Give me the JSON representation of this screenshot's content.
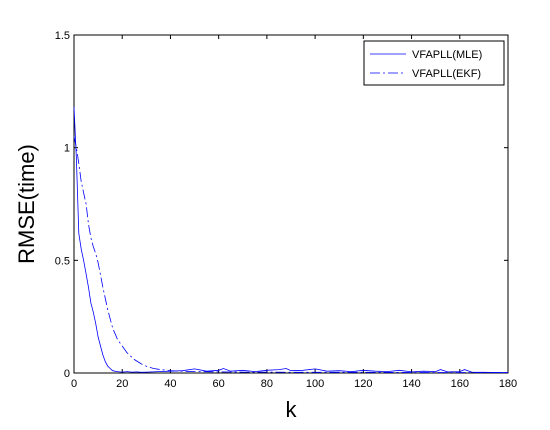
{
  "chart_data": {
    "type": "line",
    "title": "",
    "xlabel": "k",
    "ylabel": "RMSE(time)",
    "xlim": [
      0,
      180
    ],
    "ylim": [
      0,
      1.5
    ],
    "xticks": [
      0,
      20,
      40,
      60,
      80,
      100,
      120,
      140,
      160,
      180
    ],
    "yticks": [
      0,
      0.5,
      1,
      1.5
    ],
    "grid": false,
    "legend": "top-right",
    "series": [
      {
        "name": "VFAPLL(MLE)",
        "style": "solid",
        "color": "#0000ff",
        "x": [
          0,
          1,
          2,
          3,
          4,
          5,
          6,
          7,
          8,
          9,
          10,
          11,
          12,
          13,
          14,
          15,
          16,
          17,
          18,
          19,
          20,
          22,
          24,
          26,
          28,
          30,
          35,
          40,
          45,
          50,
          55,
          60,
          62,
          65,
          70,
          75,
          80,
          85,
          88,
          90,
          95,
          100,
          105,
          110,
          115,
          120,
          125,
          130,
          135,
          140,
          145,
          150,
          152,
          155,
          160,
          162,
          165,
          170,
          175,
          180
        ],
        "y": [
          1.18,
          0.95,
          0.62,
          0.55,
          0.5,
          0.44,
          0.38,
          0.31,
          0.27,
          0.22,
          0.16,
          0.12,
          0.08,
          0.05,
          0.03,
          0.02,
          0.01,
          0.008,
          0.006,
          0.005,
          0.004,
          0.006,
          0.004,
          0.005,
          0.003,
          0.004,
          0.006,
          0.008,
          0.01,
          0.018,
          0.008,
          0.012,
          0.02,
          0.008,
          0.012,
          0.006,
          0.012,
          0.015,
          0.02,
          0.01,
          0.012,
          0.018,
          0.008,
          0.01,
          0.006,
          0.012,
          0.008,
          0.006,
          0.012,
          0.005,
          0.008,
          0.006,
          0.015,
          0.005,
          0.006,
          0.015,
          0.004,
          0.003,
          0.002,
          0.002
        ]
      },
      {
        "name": "VFAPLL(EKF)",
        "style": "dashdot",
        "color": "#0000ff",
        "x": [
          0,
          1,
          2,
          3,
          4,
          5,
          6,
          7,
          8,
          9,
          10,
          12,
          14,
          16,
          18,
          20,
          22,
          25,
          28,
          30,
          33,
          36,
          40,
          45,
          50,
          60,
          70,
          80,
          90,
          100,
          120,
          140,
          160,
          180
        ],
        "y": [
          1.05,
          1.0,
          0.93,
          0.85,
          0.8,
          0.75,
          0.66,
          0.6,
          0.56,
          0.53,
          0.49,
          0.38,
          0.28,
          0.2,
          0.15,
          0.12,
          0.09,
          0.06,
          0.04,
          0.03,
          0.02,
          0.015,
          0.01,
          0.008,
          0.006,
          0.005,
          0.004,
          0.004,
          0.003,
          0.003,
          0.003,
          0.002,
          0.002,
          0.002
        ]
      }
    ]
  }
}
